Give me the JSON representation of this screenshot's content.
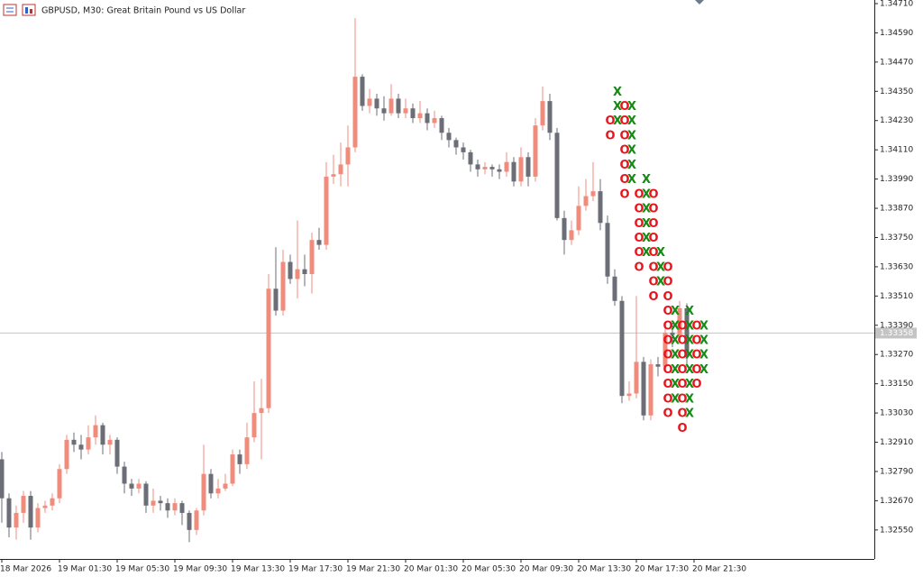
{
  "chart_data": {
    "type": "candlestick",
    "title": "GBPUSD, M30:  Great Britain Pound vs US Dollar",
    "categories": [
      "18 Mar 2026",
      null,
      null,
      null,
      null,
      null,
      null,
      null,
      "19 Mar 01:30",
      null,
      null,
      null,
      null,
      null,
      null,
      null,
      "19 Mar 05:30",
      null,
      null,
      null,
      null,
      null,
      null,
      null,
      "19 Mar 09:30",
      null,
      null,
      null,
      null,
      null,
      null,
      null,
      "19 Mar 13:30",
      null,
      null,
      null,
      null,
      null,
      null,
      null,
      "19 Mar 17:30",
      null,
      null,
      null,
      null,
      null,
      null,
      null,
      "19 Mar 21:30",
      null,
      null,
      null,
      null,
      null,
      null,
      null,
      "20 Mar 01:30",
      null,
      null,
      null,
      null,
      null,
      null,
      null,
      "20 Mar 05:30",
      null,
      null,
      null,
      null,
      null,
      null,
      null,
      "20 Mar 09:30",
      null,
      null,
      null,
      null,
      null,
      null,
      null,
      "20 Mar 13:30",
      null,
      null,
      null,
      null,
      null,
      null,
      null,
      "20 Mar 17:30",
      null,
      null,
      null,
      null,
      null,
      null,
      null,
      "20 Mar 21:30"
    ],
    "open": [
      1.3284,
      1.3268,
      1.3256,
      1.3262,
      1.3269,
      1.3256,
      1.3264,
      1.3265,
      1.3268,
      1.328,
      1.3292,
      1.329,
      1.3288,
      1.3293,
      1.3298,
      1.329,
      1.3292,
      1.3281,
      1.3274,
      1.3272,
      1.3274,
      1.3265,
      1.3267,
      1.3266,
      1.3263,
      1.3266,
      1.3262,
      1.3255,
      1.3263,
      1.3278,
      1.327,
      1.3272,
      1.3274,
      1.3286,
      1.3282,
      1.3293,
      1.3303,
      1.3305,
      1.3354,
      1.3345,
      1.3365,
      1.3358,
      1.3362,
      1.336,
      1.3374,
      1.3372,
      1.34,
      1.3401,
      1.3405,
      1.3412,
      1.3441,
      1.3429,
      1.3432,
      1.3428,
      1.3426,
      1.3432,
      1.3426,
      1.3428,
      1.3424,
      1.3426,
      1.3422,
      1.3424,
      1.3418,
      1.3415,
      1.3412,
      1.341,
      1.3405,
      1.3403,
      1.3404,
      1.3403,
      1.3402,
      1.3406,
      1.3398,
      1.3408,
      1.34,
      1.3421,
      1.3431,
      1.3418,
      1.3383,
      1.3374,
      1.3378,
      1.3388,
      1.3392,
      1.3394,
      1.3381,
      1.3359,
      1.3349,
      1.331,
      1.3311,
      1.3324,
      1.3302,
      1.3323,
      1.3322,
      1.3336,
      1.3335,
      1.3346,
      null
    ],
    "high": [
      1.3287,
      1.327,
      1.3265,
      1.3271,
      1.3271,
      1.3266,
      1.3267,
      1.327,
      1.3282,
      1.3294,
      1.3295,
      1.3294,
      1.3298,
      1.3302,
      1.3299,
      1.3294,
      1.3293,
      1.3283,
      1.3276,
      1.3276,
      1.3275,
      1.3272,
      1.3269,
      1.3268,
      1.3268,
      1.3267,
      1.3263,
      1.3264,
      1.329,
      1.328,
      1.3276,
      1.3278,
      1.3288,
      1.3288,
      1.3299,
      1.3316,
      1.3317,
      1.336,
      1.3371,
      1.337,
      1.3368,
      1.3382,
      1.3368,
      1.3377,
      1.3379,
      1.3406,
      1.3409,
      1.3414,
      1.3421,
      1.3465,
      1.3442,
      1.3436,
      1.3434,
      1.3433,
      1.3438,
      1.3434,
      1.3432,
      1.343,
      1.3431,
      1.3428,
      1.3427,
      1.3425,
      1.342,
      1.3416,
      1.3414,
      1.3411,
      1.3407,
      1.3406,
      1.3405,
      1.3405,
      1.341,
      1.3408,
      1.3412,
      1.341,
      1.3424,
      1.3437,
      1.3434,
      1.342,
      1.3386,
      1.3382,
      1.3396,
      1.3399,
      1.3406,
      1.3399,
      1.3384,
      1.3362,
      1.3351,
      1.3316,
      1.3351,
      1.3326,
      1.3325,
      1.3326,
      1.3338,
      1.334,
      1.3349,
      1.3348,
      null
    ],
    "low": [
      1.3258,
      1.3252,
      1.3251,
      1.3258,
      1.3251,
      1.3254,
      1.3262,
      1.3263,
      1.3266,
      1.3278,
      1.3287,
      1.3284,
      1.3286,
      1.329,
      1.3286,
      1.3286,
      1.3278,
      1.327,
      1.3269,
      1.327,
      1.3262,
      1.3262,
      1.3263,
      1.326,
      1.3261,
      1.3257,
      1.325,
      1.3253,
      1.3261,
      1.3268,
      1.3268,
      1.3271,
      1.3273,
      1.3278,
      1.328,
      1.3291,
      1.3284,
      1.3303,
      1.3343,
      1.3343,
      1.3356,
      1.335,
      1.3355,
      1.3352,
      1.337,
      1.337,
      1.3397,
      1.3396,
      1.3396,
      1.341,
      1.3427,
      1.3426,
      1.3425,
      1.3423,
      1.3425,
      1.3424,
      1.3424,
      1.3422,
      1.3422,
      1.3419,
      1.342,
      1.3415,
      1.3412,
      1.3409,
      1.3407,
      1.3402,
      1.34,
      1.3401,
      1.34,
      1.3399,
      1.34,
      1.3396,
      1.3396,
      1.3396,
      1.3398,
      1.3419,
      1.3415,
      1.3382,
      1.3368,
      1.3372,
      1.3376,
      1.3386,
      1.339,
      1.3378,
      1.3356,
      1.3347,
      1.3307,
      1.3308,
      1.3309,
      1.33,
      1.33,
      1.3318,
      1.332,
      1.333,
      1.3333,
      1.3322,
      null
    ],
    "close": [
      1.3268,
      1.3256,
      1.3262,
      1.3269,
      1.3256,
      1.3264,
      1.3265,
      1.3268,
      1.328,
      1.3292,
      1.329,
      1.3288,
      1.3293,
      1.3298,
      1.329,
      1.3292,
      1.3281,
      1.3274,
      1.3272,
      1.3274,
      1.3265,
      1.3267,
      1.3266,
      1.3263,
      1.3266,
      1.3262,
      1.3255,
      1.3263,
      1.3278,
      1.327,
      1.3272,
      1.3274,
      1.3286,
      1.3282,
      1.3293,
      1.3303,
      1.3305,
      1.3354,
      1.3345,
      1.3365,
      1.3358,
      1.3362,
      1.336,
      1.3374,
      1.3372,
      1.34,
      1.3401,
      1.3405,
      1.3412,
      1.3441,
      1.3429,
      1.3432,
      1.3428,
      1.3426,
      1.3432,
      1.3426,
      1.3428,
      1.3424,
      1.3426,
      1.3422,
      1.3424,
      1.3418,
      1.3415,
      1.3412,
      1.341,
      1.3405,
      1.3403,
      1.3404,
      1.3403,
      1.3402,
      1.3406,
      1.3398,
      1.3408,
      1.34,
      1.3421,
      1.3431,
      1.3418,
      1.3383,
      1.3374,
      1.3378,
      1.3388,
      1.3392,
      1.3394,
      1.3381,
      1.3359,
      1.3349,
      1.331,
      1.3311,
      1.3324,
      1.3302,
      1.3323,
      1.3322,
      1.3336,
      1.3335,
      1.3346,
      1.3326,
      null
    ],
    "up_color": "#f08c7c",
    "down_color": "#6b6e76",
    "ylim": [
      1.32431,
      1.3471
    ],
    "yticks": [
      {
        "value": 1.3471,
        "label": "1.34710"
      },
      {
        "value": 1.3459,
        "label": "1.34590"
      },
      {
        "value": 1.3447,
        "label": "1.34470"
      },
      {
        "value": 1.3435,
        "label": "1.34350"
      },
      {
        "value": 1.3423,
        "label": "1.34230"
      },
      {
        "value": 1.3411,
        "label": "1.34110"
      },
      {
        "value": 1.3399,
        "label": "1.33990"
      },
      {
        "value": 1.3387,
        "label": "1.33870"
      },
      {
        "value": 1.3375,
        "label": "1.33750"
      },
      {
        "value": 1.3363,
        "label": "1.33630"
      },
      {
        "value": 1.3351,
        "label": "1.33510"
      },
      {
        "value": 1.3339,
        "label": "1.33390"
      },
      {
        "value": 1.3327,
        "label": "1.33270"
      },
      {
        "value": 1.3315,
        "label": "1.33150"
      },
      {
        "value": 1.3303,
        "label": "1.33030"
      },
      {
        "value": 1.3291,
        "label": "1.32910"
      },
      {
        "value": 1.3279,
        "label": "1.32790"
      },
      {
        "value": 1.3267,
        "label": "1.32670"
      },
      {
        "value": 1.3255,
        "label": "1.32550"
      }
    ],
    "bid": {
      "value": 1.33358,
      "label": "1.33358"
    },
    "pnf": {
      "x_color": "#148a14",
      "o_color": "#e8141c",
      "columns": [
        {
          "type": "O",
          "values": [
            1.3423,
            1.3417
          ]
        },
        {
          "type": "X",
          "values": [
            1.3435,
            1.3429,
            1.3423
          ]
        },
        {
          "type": "O",
          "values": [
            1.3429,
            1.3423,
            1.3417,
            1.3411,
            1.3405,
            1.3399,
            1.3393
          ]
        },
        {
          "type": "X",
          "values": [
            1.3429,
            1.3423,
            1.3417,
            1.3411,
            1.3405,
            1.3399
          ]
        },
        {
          "type": "O",
          "values": [
            1.3393,
            1.3387,
            1.3381,
            1.3375,
            1.3369,
            1.3363
          ]
        },
        {
          "type": "X",
          "values": [
            1.3399,
            1.3393,
            1.3387,
            1.3381,
            1.3375,
            1.3369
          ]
        },
        {
          "type": "O",
          "values": [
            1.3393,
            1.3387,
            1.3381,
            1.3375,
            1.3369,
            1.3363,
            1.3357,
            1.3351
          ]
        },
        {
          "type": "X",
          "values": [
            1.3369,
            1.3363,
            1.3357
          ]
        },
        {
          "type": "O",
          "values": [
            1.3363,
            1.3357,
            1.3351,
            1.3345,
            1.3339,
            1.3333,
            1.3327,
            1.3321,
            1.3315,
            1.3309,
            1.3303
          ]
        },
        {
          "type": "X",
          "values": [
            1.3345,
            1.3339,
            1.3333,
            1.3327,
            1.3321,
            1.3315,
            1.3309
          ]
        },
        {
          "type": "O",
          "values": [
            1.3339,
            1.3333,
            1.3327,
            1.3321,
            1.3315,
            1.3309,
            1.3303,
            1.3297
          ]
        },
        {
          "type": "X",
          "values": [
            1.3345,
            1.3339,
            1.3333,
            1.3327,
            1.3321,
            1.3315,
            1.3309,
            1.3303
          ]
        },
        {
          "type": "O",
          "values": [
            1.3339,
            1.3333,
            1.3327,
            1.3321,
            1.3315
          ]
        },
        {
          "type": "X",
          "values": [
            1.3339,
            1.3333,
            1.3327,
            1.3321
          ]
        }
      ]
    }
  }
}
